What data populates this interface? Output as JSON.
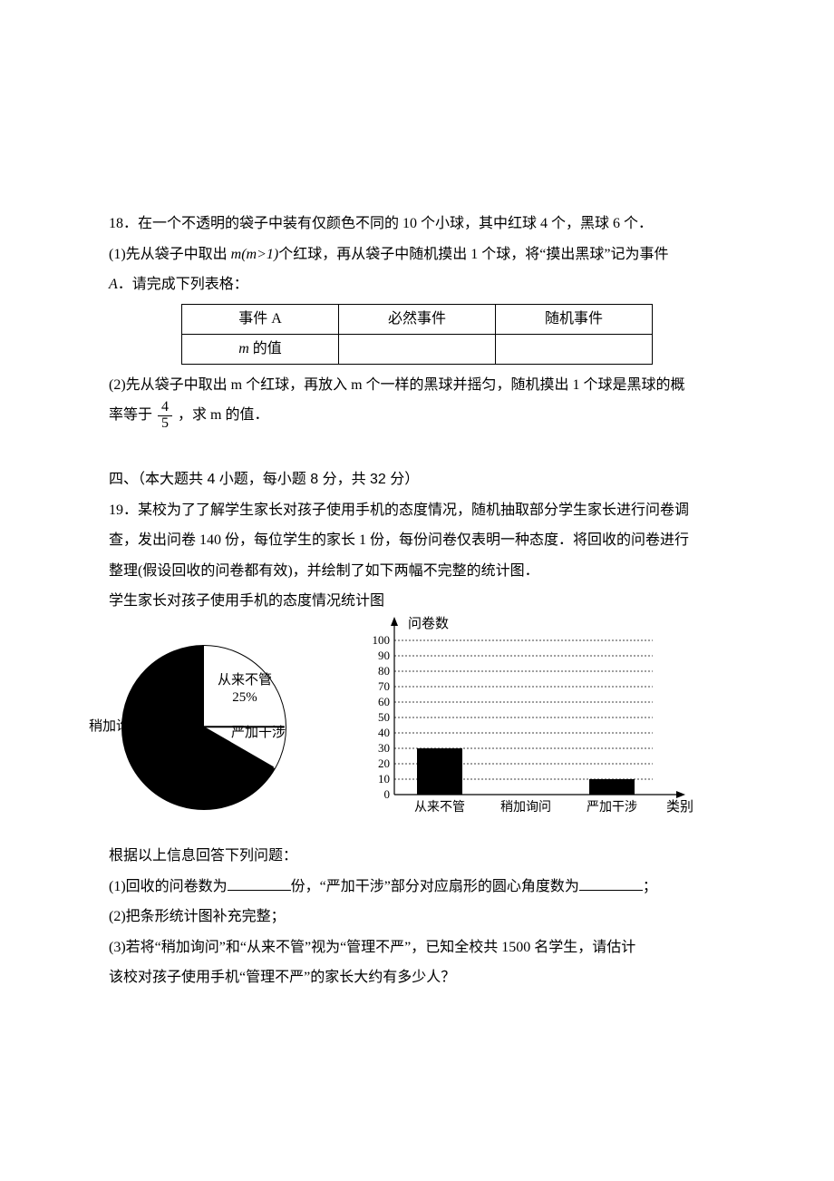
{
  "q18": {
    "intro": "18．在一个不透明的袋子中装有仅颜色不同的 10 个小球，其中红球 4 个，黑球 6 个．",
    "part1_a": "(1)先从袋子中取出 ",
    "m_expr": "m(m>1)",
    "part1_b": "个红球，再从袋子中随机摸出 1 个球，将“摸出黑球”记为事件",
    "part1_c": "A．请完成下列表格：",
    "table": {
      "h1": "事件 A",
      "h2": "必然事件",
      "h3": "随机事件",
      "r1": "m 的值"
    },
    "part2_a": "(2)先从袋子中取出 m 个红球，再放入 m 个一样的黑球并摇匀，随机摸出 1 个球是黑球的概",
    "part2_b": "率等于 ",
    "frac_num": "4",
    "frac_den": "5",
    "part2_c": " ，求 m 的值．"
  },
  "sec4": {
    "title": "四、（本大题共 4 小题，每小题 8 分，共 32 分）"
  },
  "q19": {
    "p1": "19．某校为了了解学生家长对孩子使用手机的态度情况，随机抽取部分学生家长进行问卷调",
    "p2": "查，发出问卷 140 份，每位学生的家长 1 份，每份问卷仅表明一种态度．将回收的问卷进行",
    "p3": "整理(假设回收的问卷都有效)，并绘制了如下两幅不完整的统计图．",
    "p4": "学生家长对孩子使用手机的态度情况统计图",
    "pie": {
      "never_label": "从来不管",
      "never_pct": "25%",
      "strict_label": "严加干涉",
      "inquire_label": "稍加询问",
      "inquire_color": "#000000",
      "other_color": "#ffffff",
      "border_color": "#000000",
      "angles_deg": {
        "never": 90,
        "strict": 30,
        "inquire": 240
      }
    },
    "bar": {
      "y_title": "问卷数",
      "x_title": "类别",
      "y_ticks": [
        0,
        10,
        20,
        30,
        40,
        50,
        60,
        70,
        80,
        90,
        100
      ],
      "categories": [
        "从来不管",
        "稍加询问",
        "严加干涉"
      ],
      "values": [
        30,
        null,
        10
      ],
      "bar_color": "#000000",
      "grid_color": "#000000",
      "background_color": "#ffffff",
      "ylim": [
        0,
        100
      ],
      "ytick_step": 10
    },
    "after1": "根据以上信息回答下列问题：",
    "sub1_a": "(1)回收的问卷数为",
    "sub1_b": "份，“严加干涉”部分对应扇形的圆心角度数为",
    "sub1_c": "；",
    "sub2": "(2)把条形统计图补充完整；",
    "sub3_a": "(3)若将“稍加询问”和“从来不管”视为“管理不严”，已知全校共 1500 名学生，请估计",
    "sub3_b": "该校对孩子使用手机“管理不严”的家长大约有多少人？"
  }
}
